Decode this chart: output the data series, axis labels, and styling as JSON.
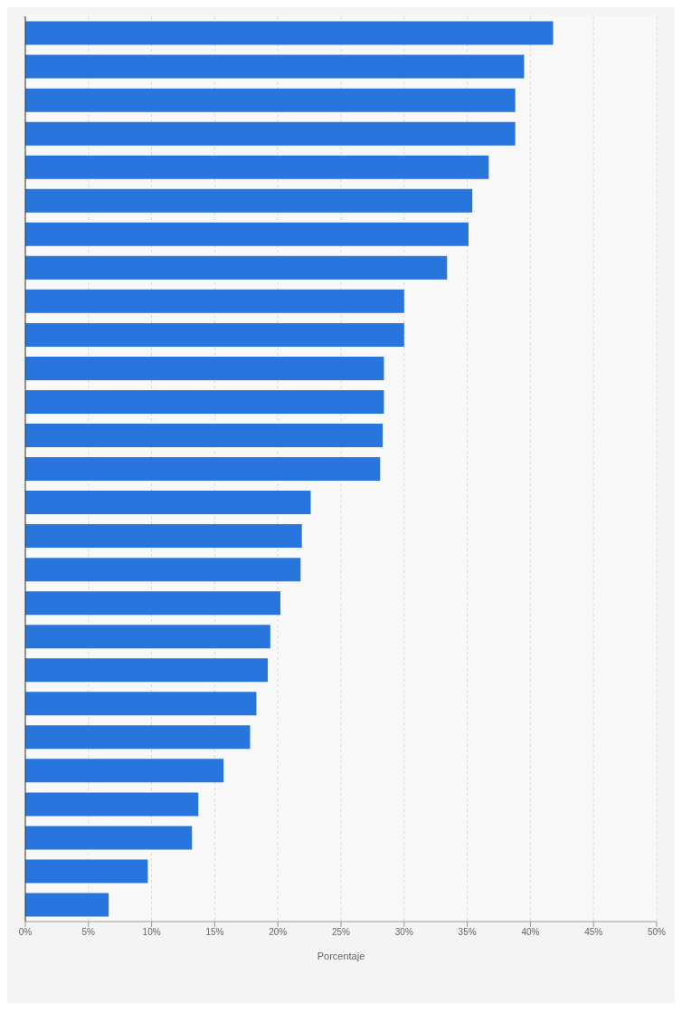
{
  "chart_data": {
    "type": "bar",
    "orientation": "horizontal",
    "xlabel": "Porcentaje",
    "categories": [
      null,
      null,
      null,
      null,
      null,
      null,
      null,
      null,
      null,
      null,
      null,
      null,
      null,
      null,
      null,
      null,
      null,
      null,
      null,
      null,
      null,
      null,
      null,
      null,
      null,
      null,
      null
    ],
    "values": [
      41.8,
      39.5,
      38.8,
      38.8,
      36.7,
      35.4,
      35.1,
      33.4,
      30.0,
      30.0,
      28.4,
      28.4,
      28.3,
      28.1,
      22.6,
      21.9,
      21.8,
      20.2,
      19.4,
      19.2,
      18.3,
      17.8,
      15.7,
      13.7,
      13.2,
      9.7,
      6.6
    ],
    "color": "#2876dd",
    "xlim": [
      0,
      50
    ],
    "xticks": [
      {
        "value": 0,
        "label": "0%"
      },
      {
        "value": 5,
        "label": "5%"
      },
      {
        "value": 10,
        "label": "10%"
      },
      {
        "value": 15,
        "label": "15%"
      },
      {
        "value": 20,
        "label": "20%"
      },
      {
        "value": 25,
        "label": "25%"
      },
      {
        "value": 30,
        "label": "30%"
      },
      {
        "value": 35,
        "label": "35%"
      },
      {
        "value": 40,
        "label": "40%"
      },
      {
        "value": 45,
        "label": "45%"
      },
      {
        "value": 50,
        "label": "50%"
      }
    ],
    "grid": "x",
    "tick_labels": "x"
  }
}
